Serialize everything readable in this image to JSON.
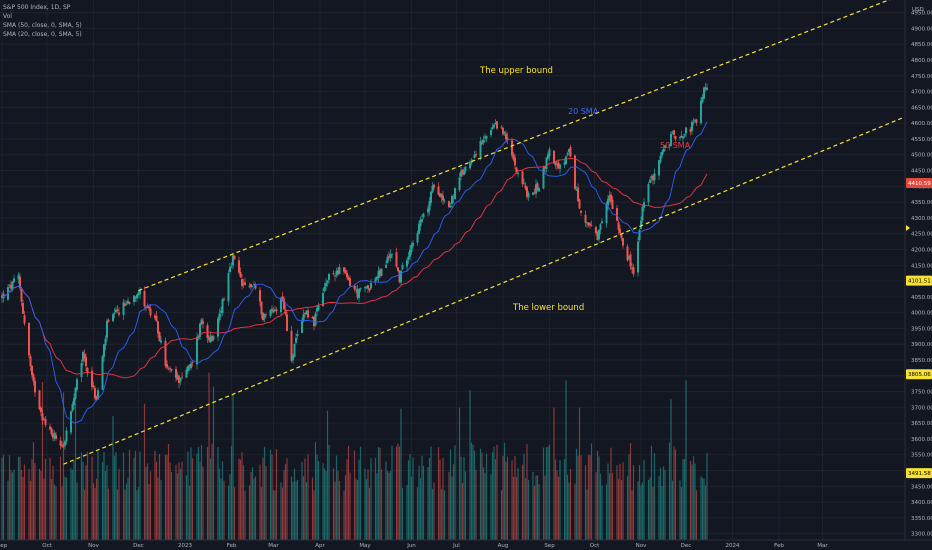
{
  "legend": {
    "symbol": "S&P 500 Index, 1D, SP",
    "vol": "Vol",
    "sma50": "SMA (50, close, 0, SMA, 5)",
    "sma20": "SMA (20, close, 0, SMA, 5)"
  },
  "chart_data": {
    "type": "candlestick",
    "currency": "USD",
    "y_range": [
      3280,
      4990
    ],
    "y_ticks": [
      3300,
      3350,
      3400,
      3450,
      3500,
      3550,
      3600,
      3650,
      3700,
      3750,
      3800,
      3850,
      3900,
      3950,
      4000,
      4050,
      4100,
      4150,
      4200,
      4250,
      4300,
      4350,
      4400,
      4450,
      4500,
      4550,
      4600,
      4650,
      4700,
      4750,
      4800,
      4850,
      4900,
      4950
    ],
    "x_ticks": [
      "Sep",
      "Oct",
      "Nov",
      "Dec",
      "2023",
      "Feb",
      "Mar",
      "Apr",
      "May",
      "Jun",
      "Jul",
      "Aug",
      "Sep",
      "Oct",
      "Nov",
      "Dec",
      "2024",
      "Feb",
      "Mar"
    ],
    "price_tags": [
      {
        "value": "4410.59",
        "color": "#e04a3f",
        "text_color": "#ffffff"
      },
      {
        "value": "4101.51",
        "color": "#f7e135",
        "text_color": "#000000"
      },
      {
        "value": "3805.06",
        "color": "#f7e135",
        "text_color": "#000000"
      },
      {
        "value": "3491.58",
        "color": "#f7e135",
        "text_color": "#000000"
      }
    ],
    "anchors": [
      [
        "2022-09-01",
        4050
      ],
      [
        "2022-09-12",
        4110
      ],
      [
        "2022-09-21",
        3790
      ],
      [
        "2022-09-30",
        3640
      ],
      [
        "2022-10-12",
        3580
      ],
      [
        "2022-10-17",
        3680
      ],
      [
        "2022-10-25",
        3870
      ],
      [
        "2022-11-03",
        3720
      ],
      [
        "2022-11-10",
        3960
      ],
      [
        "2022-11-15",
        3990
      ],
      [
        "2022-11-23",
        4030
      ],
      [
        "2022-12-01",
        4070
      ],
      [
        "2022-12-13",
        3960
      ],
      [
        "2022-12-20",
        3820
      ],
      [
        "2022-12-28",
        3790
      ],
      [
        "2023-01-05",
        3830
      ],
      [
        "2023-01-12",
        3980
      ],
      [
        "2023-01-19",
        3900
      ],
      [
        "2023-02-02",
        4170
      ],
      [
        "2023-02-09",
        4080
      ],
      [
        "2023-02-16",
        4090
      ],
      [
        "2023-02-22",
        3990
      ],
      [
        "2023-03-02",
        4010
      ],
      [
        "2023-03-07",
        4050
      ],
      [
        "2023-03-13",
        3855
      ],
      [
        "2023-03-22",
        4010
      ],
      [
        "2023-03-28",
        3970
      ],
      [
        "2023-04-06",
        4105
      ],
      [
        "2023-04-14",
        4140
      ],
      [
        "2023-04-26",
        4060
      ],
      [
        "2023-05-03",
        4080
      ],
      [
        "2023-05-12",
        4130
      ],
      [
        "2023-05-19",
        4195
      ],
      [
        "2023-05-24",
        4110
      ],
      [
        "2023-06-01",
        4220
      ],
      [
        "2023-06-12",
        4335
      ],
      [
        "2023-06-16",
        4410
      ],
      [
        "2023-06-26",
        4335
      ],
      [
        "2023-07-05",
        4445
      ],
      [
        "2023-07-14",
        4510
      ],
      [
        "2023-07-26",
        4585
      ],
      [
        "2023-07-31",
        4590
      ],
      [
        "2023-08-09",
        4470
      ],
      [
        "2023-08-18",
        4365
      ],
      [
        "2023-08-25",
        4405
      ],
      [
        "2023-09-01",
        4515
      ],
      [
        "2023-09-07",
        4450
      ],
      [
        "2023-09-14",
        4505
      ],
      [
        "2023-09-21",
        4330
      ],
      [
        "2023-10-03",
        4230
      ],
      [
        "2023-10-11",
        4375
      ],
      [
        "2023-10-20",
        4225
      ],
      [
        "2023-10-27",
        4120
      ],
      [
        "2023-11-03",
        4360
      ],
      [
        "2023-11-14",
        4495
      ],
      [
        "2023-11-22",
        4560
      ],
      [
        "2023-11-30",
        4570
      ],
      [
        "2023-12-08",
        4605
      ],
      [
        "2023-12-14",
        4720
      ],
      [
        "2023-12-15",
        4720
      ]
    ],
    "annotations": {
      "upper_label": "The upper bound",
      "lower_label": "The lower bound",
      "sma20_label": "20 SMA",
      "sma50_label": "50 SMA"
    },
    "colors": {
      "up": "#26a69a",
      "down": "#ef5350",
      "sma20": "#2962ff",
      "sma50": "#f23645",
      "trend": "#f7e135"
    }
  }
}
